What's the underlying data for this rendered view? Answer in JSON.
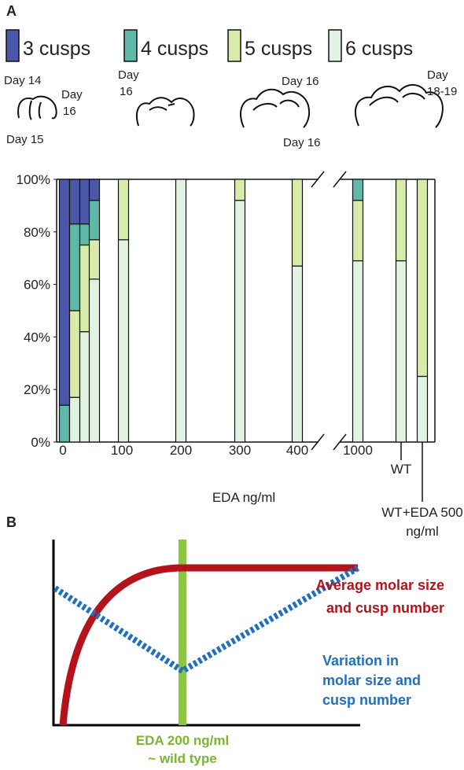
{
  "panel_labels": [
    "A",
    "B"
  ],
  "tooth_stages": [
    [
      "Day 14"
    ],
    [
      "Day",
      "16"
    ],
    [
      "Day 15"
    ],
    [
      "Day",
      "16"
    ],
    [
      "Day 16"
    ],
    [
      "Day 16"
    ],
    [
      "Day",
      "18-19"
    ]
  ],
  "chart_data": {
    "type": "bar",
    "stacked": true,
    "legend": "top",
    "x_title": "EDA ng/ml",
    "categories": [
      "0",
      null,
      null,
      null,
      "100",
      "200",
      "300",
      "400",
      "1000",
      "WT",
      "WT+EDA 500 ng/ml"
    ],
    "series": [
      {
        "name": "3 cusps",
        "color": "#4b57a8",
        "values": [
          86,
          17,
          17,
          8,
          0,
          0,
          0,
          0,
          0,
          0,
          0
        ]
      },
      {
        "name": "4 cusps",
        "color": "#5fb8a8",
        "values": [
          14,
          33,
          8,
          15,
          0,
          0,
          0,
          0,
          8,
          0,
          0
        ]
      },
      {
        "name": "5 cusps",
        "color": "#d9eba8",
        "values": [
          0,
          33,
          33,
          15,
          23,
          0,
          8,
          33,
          23,
          31,
          75
        ]
      },
      {
        "name": "6 cusps",
        "color": "#e3f3e3",
        "values": [
          0,
          17,
          42,
          62,
          77,
          100,
          92,
          67,
          69,
          69,
          25
        ]
      }
    ],
    "ylim": [
      0,
      100
    ],
    "yticks": [
      {
        "value": 0,
        "label": "0%"
      },
      {
        "value": 20,
        "label": "20%"
      },
      {
        "value": 40,
        "label": "40%"
      },
      {
        "value": 60,
        "label": "60%"
      },
      {
        "value": 80,
        "label": "80%"
      },
      {
        "value": 100,
        "label": "100%"
      }
    ]
  },
  "schematic": {
    "average_label": [
      "Average molar size",
      "and cusp number"
    ],
    "variation_label": [
      "Variation in",
      "molar size and",
      "cusp number"
    ],
    "reference_label": [
      "EDA 200 ng/ml",
      "~ wild type"
    ]
  }
}
